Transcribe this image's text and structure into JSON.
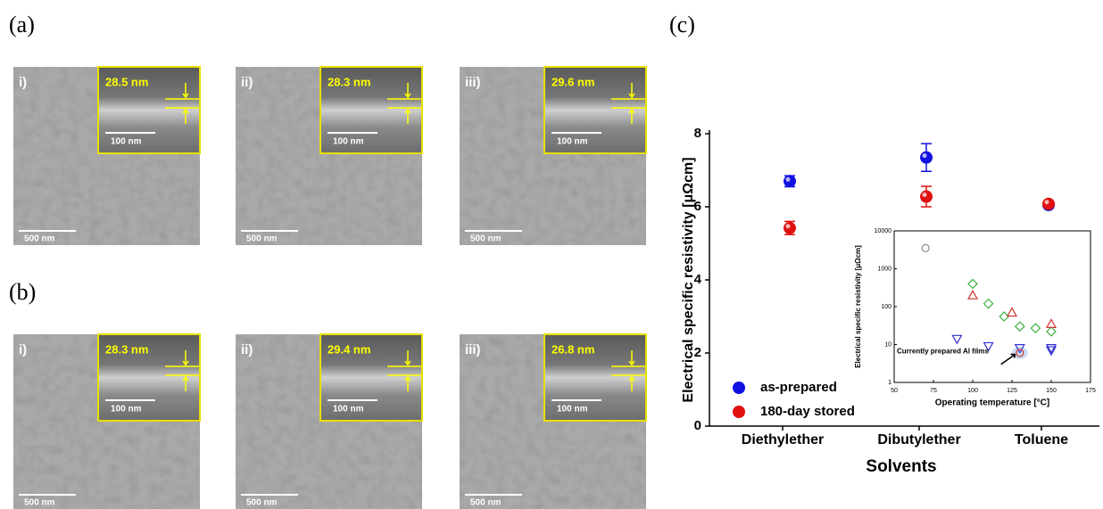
{
  "panels": [
    {
      "label": "(a)",
      "images": [
        {
          "roman": "i)",
          "thickness": "28.5 nm",
          "inset_scale": "100 nm",
          "scale": "500 nm"
        },
        {
          "roman": "ii)",
          "thickness": "28.3 nm",
          "inset_scale": "100 nm",
          "scale": "500 nm"
        },
        {
          "roman": "iii)",
          "thickness": "29.6 nm",
          "inset_scale": "100 nm",
          "scale": "500 nm"
        }
      ]
    },
    {
      "label": "(b)",
      "images": [
        {
          "roman": "i)",
          "thickness": "28.3 nm",
          "inset_scale": "100 nm",
          "scale": "500 nm"
        },
        {
          "roman": "ii)",
          "thickness": "29.4 nm",
          "inset_scale": "100 nm",
          "scale": "500 nm"
        },
        {
          "roman": "iii)",
          "thickness": "26.8 nm",
          "inset_scale": "100 nm",
          "scale": "500 nm"
        }
      ]
    }
  ],
  "panel_c_label": "(c)",
  "chart_data": [
    {
      "type": "errorbar-scatter",
      "x_label": "Solvents",
      "y_label": "Electrical specific resistivity [μΩcm]",
      "categories": [
        "Diethylether",
        "Dibutylether",
        "Toluene"
      ],
      "series": [
        {
          "name": "as-prepared",
          "color": "#1010e0",
          "values": [
            6.7,
            7.35,
            6.05
          ],
          "errors": [
            0.15,
            0.38,
            0.05
          ]
        },
        {
          "name": "180-day stored",
          "color": "#e01010",
          "values": [
            5.42,
            6.28,
            6.08
          ],
          "errors": [
            0.18,
            0.28,
            0.05
          ]
        }
      ],
      "ylim": [
        0,
        8
      ],
      "yticks": [
        0,
        2,
        4,
        6,
        8
      ]
    },
    {
      "type": "log-scatter",
      "x_label": "Operating temperature [°C]",
      "y_label": "Electrical specific resistivity [μΩcm]",
      "annotation": "Currently prepared Al films",
      "log_y": true,
      "xlim": [
        50,
        175
      ],
      "xticks": [
        50,
        75,
        100,
        125,
        150,
        175
      ],
      "ylim": [
        1,
        10000
      ],
      "yticks": [
        1,
        10,
        100,
        1000,
        10000
      ],
      "series": [
        {
          "marker": "circle",
          "color": "#888888",
          "x": [
            70
          ],
          "values": [
            3500
          ]
        },
        {
          "marker": "diamond",
          "color": "#3cb043",
          "x": [
            100,
            110,
            120,
            130,
            140,
            150
          ],
          "values": [
            400,
            120,
            55,
            30,
            27,
            22
          ]
        },
        {
          "marker": "triangle-up",
          "color": "#d03030",
          "x": [
            100,
            125,
            150
          ],
          "values": [
            200,
            70,
            35
          ]
        },
        {
          "marker": "triangle-down",
          "color": "#3030d0",
          "x": [
            90,
            110,
            130,
            150,
            150
          ],
          "values": [
            14,
            9,
            8,
            8,
            7
          ]
        },
        {
          "marker": "circle",
          "color": "#d03030",
          "x": [
            130
          ],
          "values": [
            6
          ]
        }
      ]
    }
  ]
}
